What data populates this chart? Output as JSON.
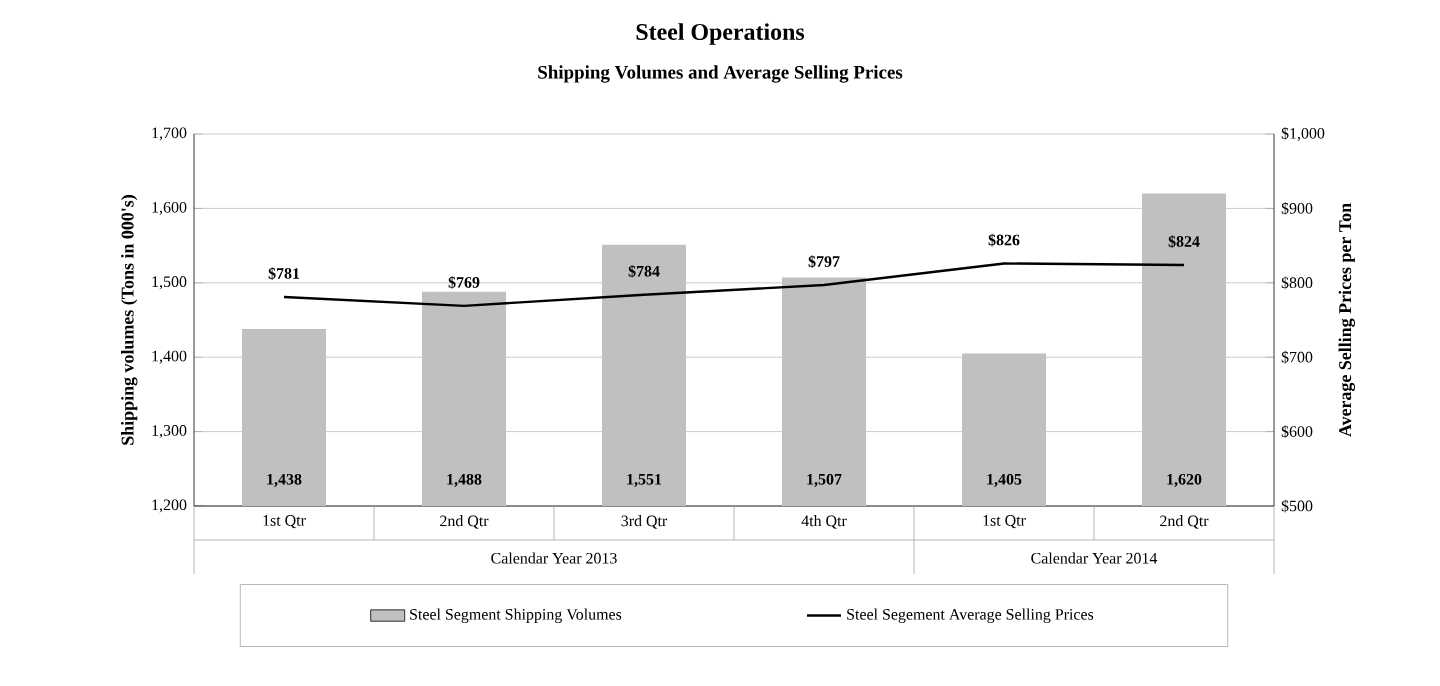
{
  "chart_data": {
    "type": "bar",
    "title": "Steel Operations",
    "subtitle": "Shipping Volumes and Average Selling Prices",
    "ylabel": "Shipping volumes (Tons in 000's)",
    "y2label": "Average Selling Prices per Ton",
    "categories": [
      "1st Qtr",
      "2nd Qtr",
      "3rd Qtr",
      "4th Qtr",
      "1st Qtr",
      "2nd Qtr"
    ],
    "annotations": [
      "Calendar Year 2013",
      "Calendar Year 2014"
    ],
    "series": [
      {
        "name": "Steel Segment Shipping Volumes",
        "color": "#c0c0c0",
        "values": [
          1438,
          1488,
          1551,
          1507,
          1405,
          1620
        ],
        "value_labels": [
          "1,438",
          "1,488",
          "1,551",
          "1,507",
          "1,405",
          "1,620"
        ]
      },
      {
        "name": "Steel Segement Average Selling Prices",
        "type": "line",
        "axis": "y2",
        "color": "#000000",
        "values": [
          781,
          769,
          784,
          797,
          826,
          824
        ],
        "value_labels": [
          "$781",
          "$769",
          "$784",
          "$797",
          "$826",
          "$824"
        ]
      }
    ],
    "ylim": [
      1200,
      1700
    ],
    "yticks": [
      {
        "value": 1200,
        "label": "1,200"
      },
      {
        "value": 1300,
        "label": "1,300"
      },
      {
        "value": 1400,
        "label": "1,400"
      },
      {
        "value": 1500,
        "label": "1,500"
      },
      {
        "value": 1600,
        "label": "1,600"
      },
      {
        "value": 1700,
        "label": "1,700"
      }
    ],
    "y2lim": [
      500,
      1000
    ],
    "y2ticks": [
      {
        "value": 500,
        "label": "$500"
      },
      {
        "value": 600,
        "label": "$600"
      },
      {
        "value": 700,
        "label": "$700"
      },
      {
        "value": 800,
        "label": "$800"
      },
      {
        "value": 900,
        "label": "$900"
      },
      {
        "value": 1000,
        "label": "$1,000"
      }
    ],
    "grid": "y",
    "legend": "bottom",
    "marker": "none",
    "line_style": "solid"
  }
}
